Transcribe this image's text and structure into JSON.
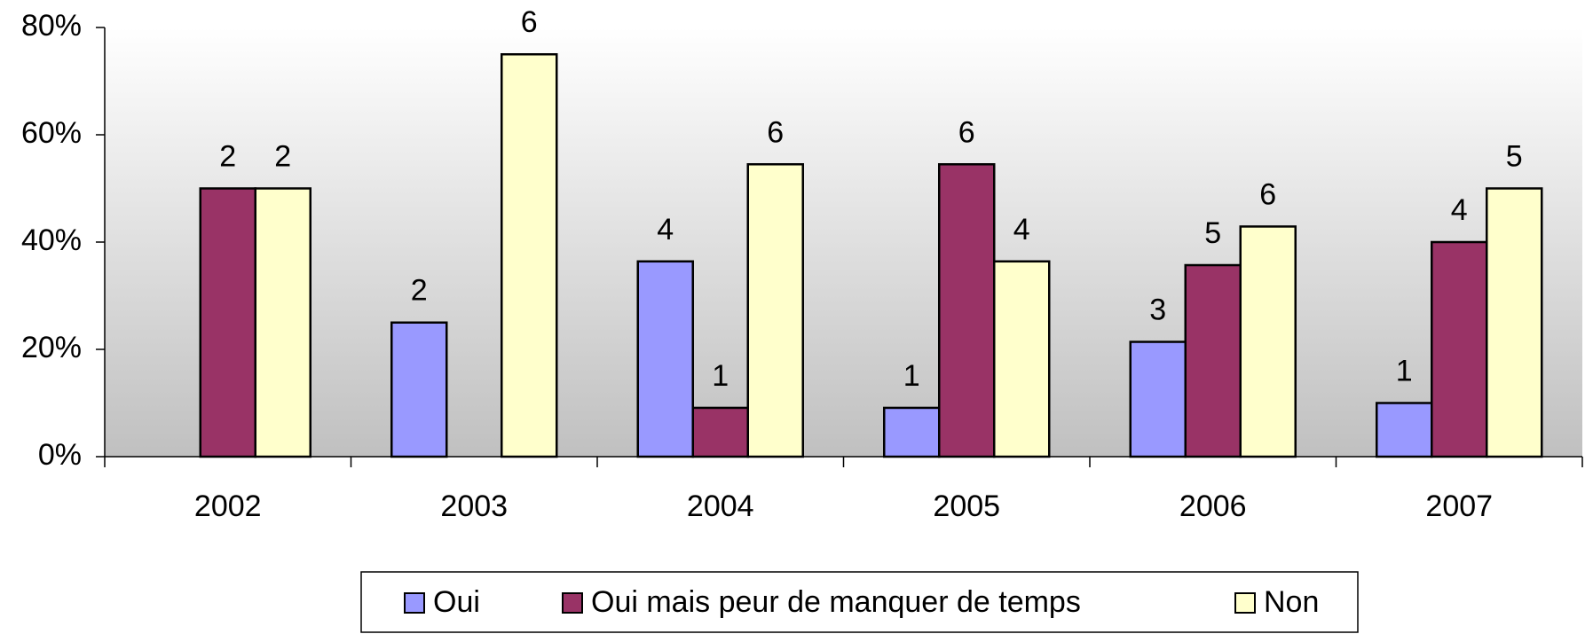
{
  "chart_data": {
    "type": "bar",
    "categories": [
      "2002",
      "2003",
      "2004",
      "2005",
      "2006",
      "2007"
    ],
    "series": [
      {
        "name": "Oui",
        "color": "#9999ff",
        "values": [
          null,
          25,
          36.4,
          9.1,
          21.4,
          10
        ],
        "counts": [
          null,
          2,
          4,
          1,
          3,
          1
        ]
      },
      {
        "name": "Oui mais peur de manquer de temps",
        "color": "#993366",
        "values": [
          50,
          null,
          9.1,
          54.5,
          35.7,
          40
        ],
        "counts": [
          2,
          null,
          1,
          6,
          5,
          4
        ]
      },
      {
        "name": "Non",
        "color": "#ffffcc",
        "values": [
          50,
          75,
          54.5,
          36.4,
          42.9,
          50
        ],
        "counts": [
          2,
          6,
          6,
          4,
          6,
          5
        ]
      }
    ],
    "ylim": [
      0,
      80
    ],
    "yticks": [
      {
        "value": 0,
        "label": "0%"
      },
      {
        "value": 20,
        "label": "20%"
      },
      {
        "value": 40,
        "label": "40%"
      },
      {
        "value": 60,
        "label": "60%"
      },
      {
        "value": 80,
        "label": "80%"
      }
    ],
    "legend": "bottom"
  }
}
